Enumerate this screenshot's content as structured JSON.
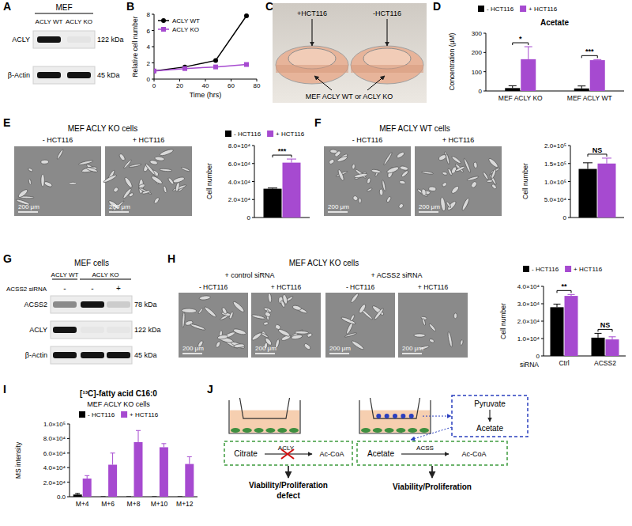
{
  "figure": {
    "letters": [
      "A",
      "B",
      "C",
      "D",
      "E",
      "F",
      "G",
      "H",
      "I",
      "J"
    ],
    "blot_a": {
      "header": "MEF",
      "lanes": [
        "ACLY WT",
        "ACLY KO"
      ],
      "rows": [
        {
          "label": "ACLY",
          "size": "122 kDa",
          "bands": [
            1,
            0.04
          ]
        },
        {
          "label": "β-Actin",
          "size": "45 kDa",
          "bands": [
            1,
            1
          ]
        }
      ]
    },
    "photo_c": {
      "top": [
        "+HCT116",
        "-HCT116"
      ],
      "bottom": "MEF ACLY WT or ACLY KO"
    },
    "micro_e": {
      "title": "MEF ACLY KO cells",
      "images": [
        "- HCT116",
        "+ HCT116"
      ],
      "scale": "200 μm"
    },
    "micro_f": {
      "title": "MEF ACLY WT cells",
      "images": [
        "- HCT116",
        "+ HCT116"
      ],
      "scale": "200 μm"
    },
    "blot_g": {
      "header": "MEF cells",
      "groups": [
        "ACLY WT",
        "ACLY KO"
      ],
      "sirna_label": "ACSS2 siRNA",
      "sirna": [
        "-",
        "-",
        "+"
      ],
      "rows": [
        {
          "label": "ACSS2",
          "size": "78 kDa",
          "bands": [
            0.45,
            1,
            0.15
          ]
        },
        {
          "label": "ACLY",
          "size": "122 kDa",
          "bands": [
            1,
            0.03,
            0.03
          ]
        },
        {
          "label": "β-Actin",
          "size": "45 kDa",
          "bands": [
            1,
            1,
            1
          ]
        }
      ]
    },
    "micro_h": {
      "title": "MEF ACLY KO cells",
      "groups": [
        {
          "label": "+ control siRNA",
          "images": [
            "- HCT116",
            "+ HCT116"
          ]
        },
        {
          "label": "+ ACSS2 siRNA",
          "images": [
            "- HCT116",
            "+ HCT116"
          ]
        }
      ],
      "scale": "200 μm"
    },
    "diagram_j": {
      "left": {
        "substrate": "Citrate",
        "enzyme": "ACLY",
        "product": "Ac-CoA",
        "outcome": [
          "Viability/Proliferation",
          "defect"
        ]
      },
      "right": {
        "source": "Pyruvate",
        "intermediate": "Acetate",
        "substrate": "Acetate",
        "enzyme": "ACSS",
        "product": "Ac-CoA",
        "outcome": [
          "Viability/Proliferation"
        ]
      }
    }
  },
  "chart_data": [
    {
      "type": "line",
      "x_label": "Time (hrs)",
      "y_label": "Relative cell number",
      "x": [
        0,
        24,
        48,
        72
      ],
      "xlim": [
        0,
        80
      ],
      "xticks": [
        0,
        20,
        40,
        60,
        80
      ],
      "ylim": [
        0,
        8
      ],
      "yticks": [
        0,
        2,
        4,
        6,
        8
      ],
      "legend": "upper left",
      "series": [
        {
          "name": "ACLY WT",
          "color": "#000000",
          "marker": "circle",
          "values": [
            1,
            1.5,
            2.3,
            7.8
          ]
        },
        {
          "name": "ACLY KO",
          "color": "#a64ad0",
          "marker": "square",
          "values": [
            1,
            1.3,
            1.5,
            1.8
          ]
        }
      ]
    },
    {
      "type": "bar",
      "title": "Acetate",
      "y_label": "Concentration (μM)",
      "categories": [
        "MEF ACLY KO",
        "MEF ACLY WT"
      ],
      "ylim": [
        0,
        300
      ],
      "yticks": [
        0,
        100,
        200,
        300
      ],
      "legend": "top",
      "annotations": [
        "*",
        "***"
      ],
      "series": [
        {
          "name": "- HCT116",
          "color": "#000000",
          "values": [
            15,
            13
          ],
          "errors": [
            12,
            13
          ]
        },
        {
          "name": "+ HCT116",
          "color": "#a64ad0",
          "values": [
            165,
            160
          ],
          "errors": [
            65,
            3
          ]
        }
      ]
    },
    {
      "type": "bar",
      "y_label": "Cell number",
      "categories": [
        null
      ],
      "ylim": [
        0,
        80000
      ],
      "yticks": [
        0,
        {
          "value": 20000,
          "label": "2.0×10⁴"
        },
        {
          "value": 40000,
          "label": "4.0×10⁴"
        },
        {
          "value": 60000,
          "label": "6.0×10⁴"
        },
        {
          "value": 80000,
          "label": "8.0×10⁴"
        }
      ],
      "legend": "top",
      "annotations": [
        "***"
      ],
      "series": [
        {
          "name": "- HCT116",
          "color": "#000000",
          "values": [
            32000
          ],
          "errors": [
            800
          ]
        },
        {
          "name": "+ HCT116",
          "color": "#a64ad0",
          "values": [
            61000
          ],
          "errors": [
            4000
          ]
        }
      ]
    },
    {
      "type": "bar",
      "y_label": "Cell number",
      "categories": [
        null
      ],
      "ylim": [
        0,
        200000
      ],
      "yticks": [
        0,
        {
          "value": 50000,
          "label": "5.0×10⁴"
        },
        {
          "value": 100000,
          "label": "1.0×10⁵"
        },
        {
          "value": 150000,
          "label": "1.5×10⁵"
        },
        {
          "value": 200000,
          "label": "2.0×10⁵"
        }
      ],
      "annotations": [
        "NS"
      ],
      "series": [
        {
          "color": "#000000",
          "values": [
            135000
          ],
          "errors": [
            17000
          ]
        },
        {
          "color": "#a64ad0",
          "values": [
            150000
          ],
          "errors": [
            15000
          ]
        }
      ]
    },
    {
      "type": "bar",
      "y_label": "Cell number",
      "x_label": "siRNA",
      "categories": [
        "Ctrl",
        "ACSS2"
      ],
      "ylim": [
        0,
        40000
      ],
      "yticks": [
        0,
        {
          "value": 10000,
          "label": "1.0×10⁴"
        },
        {
          "value": 20000,
          "label": "2.0×10⁴"
        },
        {
          "value": 30000,
          "label": "3.0×10⁴"
        },
        {
          "value": 40000,
          "label": "4.0×10⁴"
        }
      ],
      "legend": "top",
      "annotations": [
        "**",
        "NS"
      ],
      "series": [
        {
          "name": "- HCT116",
          "color": "#000000",
          "values": [
            28000,
            10500
          ],
          "errors": [
            1800,
            2500
          ]
        },
        {
          "name": "+ HCT116",
          "color": "#a64ad0",
          "values": [
            34500,
            9500
          ],
          "errors": [
            800,
            1500
          ]
        }
      ]
    },
    {
      "type": "bar",
      "title": "[¹³C]-fatty acid C16:0",
      "subtitle": "MEF ACLY KO cells",
      "y_label": "MS intensity",
      "categories": [
        "M+4",
        "M+6",
        "M+8",
        "M+10",
        "M+12"
      ],
      "ylim": [
        0,
        100000
      ],
      "yticks": [
        {
          "value": 0,
          "label": "0.0"
        },
        {
          "value": 20000,
          "label": "2.0×10⁴"
        },
        {
          "value": 40000,
          "label": "4.0×10⁴"
        },
        {
          "value": 60000,
          "label": "6.0×10⁴"
        },
        {
          "value": 80000,
          "label": "8.0×10⁴"
        },
        {
          "value": 100000,
          "label": "1.0×10⁵"
        }
      ],
      "legend": "top",
      "series": [
        {
          "name": "- HCT116",
          "color": "#000000",
          "values": [
            3000,
            0,
            0,
            0,
            0
          ],
          "errors": [
            1500,
            0,
            0,
            0,
            0
          ]
        },
        {
          "name": "+ HCT116",
          "color": "#a64ad0",
          "values": [
            25000,
            44000,
            75000,
            68000,
            45000
          ],
          "errors": [
            4000,
            16000,
            16000,
            5000,
            10000
          ]
        }
      ]
    }
  ]
}
